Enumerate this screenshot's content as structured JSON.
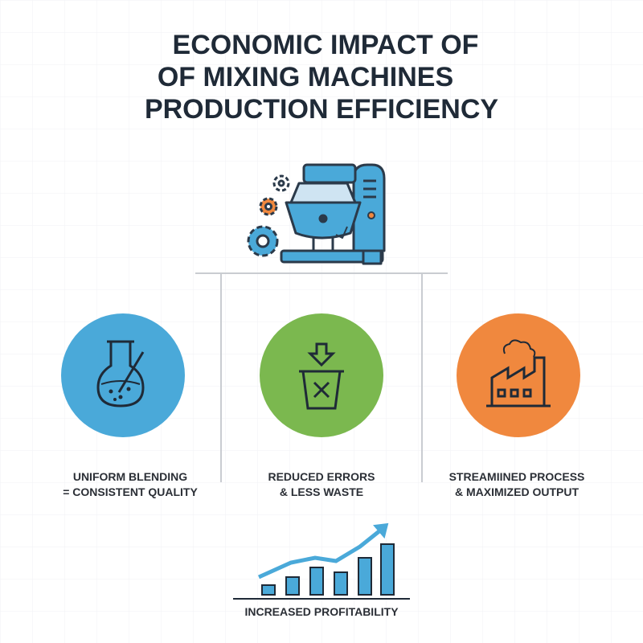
{
  "header": {
    "title_lines": [
      "ECONOMIC IMPACT OF",
      "OF MIXING MACHINES",
      "PRODUCTION EFFICIENCY"
    ]
  },
  "items": [
    {
      "lines": [
        "UNIFORM BLENDING",
        "= CONSISTENT QUALITY"
      ]
    },
    {
      "lines": [
        "REDUCED ERRORS",
        "& LESS WASTE"
      ]
    },
    {
      "lines": [
        "STREAMIINED PROCESS",
        "& MAXIMIZED OUTPUT"
      ]
    }
  ],
  "footer": {
    "label": "INCREASED PROFITABILITY"
  }
}
